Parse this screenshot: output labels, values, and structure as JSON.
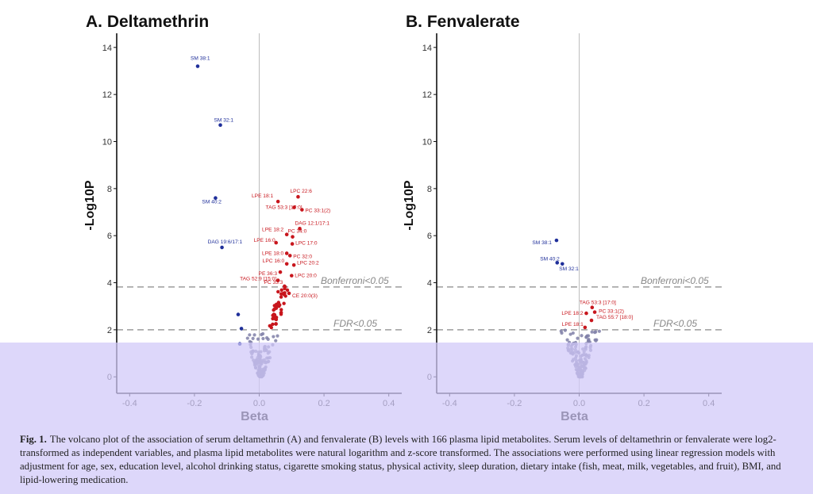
{
  "chart_data": [
    {
      "type": "scatter",
      "title": "A. Deltamethrin",
      "xlabel": "Beta",
      "ylabel": "-Log10P",
      "xlim": [
        -0.44,
        0.44
      ],
      "ylim": [
        -0.7,
        14.6
      ],
      "xticks": [
        "-0.4",
        "-0.2",
        "0.0",
        "0.2",
        "0.4"
      ],
      "yticks": [
        "0",
        "2",
        "4",
        "6",
        "8",
        "10",
        "12",
        "14"
      ],
      "grid": false,
      "legend": "none",
      "colors": {
        "negative": "#1f2f9a",
        "positive": "#c8161d",
        "nonsignificant": "#8080a8",
        "threshold": "#aaaaaa"
      },
      "thresholds": [
        {
          "label": "Bonferroni<0.05",
          "y": 3.82
        },
        {
          "label": "FDR<0.05",
          "y": 2.0
        }
      ],
      "points": [
        {
          "label": "SM 38:1",
          "x": -0.19,
          "y": 13.2,
          "group": "negative"
        },
        {
          "label": "SM 32:1",
          "x": -0.12,
          "y": 10.7,
          "group": "negative"
        },
        {
          "label": "SM 40:2",
          "x": -0.135,
          "y": 7.6,
          "group": "negative"
        },
        {
          "label": "DAG 19:6/17:1",
          "x": -0.115,
          "y": 5.5,
          "group": "negative"
        },
        {
          "label": "",
          "x": -0.065,
          "y": 2.65,
          "group": "negative"
        },
        {
          "label": "",
          "x": -0.055,
          "y": 2.05,
          "group": "negative"
        },
        {
          "label": "",
          "x": -0.06,
          "y": 1.4,
          "group": "negative"
        },
        {
          "label": "LPE 18:1",
          "x": 0.058,
          "y": 7.45,
          "group": "positive"
        },
        {
          "label": "LPC 22:6",
          "x": 0.12,
          "y": 7.65,
          "group": "positive"
        },
        {
          "label": "TAG 53:3 [17:0]",
          "x": 0.108,
          "y": 7.2,
          "group": "positive"
        },
        {
          "label": "PC 33:1(2)",
          "x": 0.132,
          "y": 7.1,
          "group": "positive"
        },
        {
          "label": "DAG 12:1/17:1",
          "x": 0.125,
          "y": 6.3,
          "group": "positive"
        },
        {
          "label": "LPE 18:2",
          "x": 0.085,
          "y": 6.05,
          "group": "positive"
        },
        {
          "label": "PC 34:0",
          "x": 0.103,
          "y": 5.95,
          "group": "positive"
        },
        {
          "label": "LPE 16:0",
          "x": 0.052,
          "y": 5.7,
          "group": "positive"
        },
        {
          "label": "LPC 17:0",
          "x": 0.102,
          "y": 5.65,
          "group": "positive"
        },
        {
          "label": "LPE 18:0",
          "x": 0.085,
          "y": 5.25,
          "group": "positive"
        },
        {
          "label": "PC 32:0",
          "x": 0.095,
          "y": 5.15,
          "group": "positive"
        },
        {
          "label": "LPC 16:0",
          "x": 0.085,
          "y": 4.8,
          "group": "positive"
        },
        {
          "label": "LPC 20:2",
          "x": 0.107,
          "y": 4.75,
          "group": "positive"
        },
        {
          "label": "PE 36:3",
          "x": 0.065,
          "y": 4.45,
          "group": "positive"
        },
        {
          "label": "LPC 20:0",
          "x": 0.1,
          "y": 4.3,
          "group": "positive"
        },
        {
          "label": "TAG 52:9 [15:0]",
          "x": 0.058,
          "y": 4.1,
          "group": "positive"
        },
        {
          "label": "PC 33:3",
          "x": 0.078,
          "y": 3.85,
          "group": "positive"
        },
        {
          "label": "CE 20:0(3)",
          "x": 0.092,
          "y": 3.55,
          "group": "positive"
        }
      ]
    },
    {
      "type": "scatter",
      "title": "B. Fenvalerate",
      "xlabel": "Beta",
      "ylabel": "-Log10P",
      "xlim": [
        -0.44,
        0.44
      ],
      "ylim": [
        -0.7,
        14.6
      ],
      "xticks": [
        "-0.4",
        "-0.2",
        "0.0",
        "0.2",
        "0.4"
      ],
      "yticks": [
        "0",
        "2",
        "4",
        "6",
        "8",
        "10",
        "12",
        "14"
      ],
      "grid": false,
      "legend": "none",
      "colors": {
        "negative": "#1f2f9a",
        "positive": "#c8161d",
        "nonsignificant": "#8080a8",
        "threshold": "#aaaaaa"
      },
      "thresholds": [
        {
          "label": "Bonferroni<0.05",
          "y": 3.82
        },
        {
          "label": "FDR<0.05",
          "y": 2.0
        }
      ],
      "points": [
        {
          "label": "SM 38:1",
          "x": -0.07,
          "y": 5.8,
          "group": "negative"
        },
        {
          "label": "SM 40:2",
          "x": -0.068,
          "y": 4.85,
          "group": "negative"
        },
        {
          "label": "SM 32:1",
          "x": -0.052,
          "y": 4.8,
          "group": "negative"
        },
        {
          "label": "TAG 53:3 [17:0]",
          "x": 0.04,
          "y": 2.95,
          "group": "positive"
        },
        {
          "label": "LPE 18:2",
          "x": 0.022,
          "y": 2.7,
          "group": "positive"
        },
        {
          "label": "PC 33:1(2)",
          "x": 0.048,
          "y": 2.75,
          "group": "positive"
        },
        {
          "label": "LPE 18:1",
          "x": 0.018,
          "y": 2.1,
          "group": "positive"
        },
        {
          "label": "TAG 55:7 [18:0]",
          "x": 0.038,
          "y": 2.4,
          "group": "positive"
        }
      ]
    }
  ],
  "caption": {
    "label": "Fig. 1.",
    "text": "The volcano plot of the association of serum deltamethrin (A) and fenvalerate (B) levels with 166 plasma lipid metabolites. Serum levels of deltamethrin or fenvalerate were log2-transformed as independent variables, and plasma lipid metabolites were natural logarithm and z-score transformed. The associations were performed using linear regression models with adjustment for age, sex, education level, alcohol drinking status, cigarette smoking status, physical activity, sleep duration, dietary intake (fish, meat, milk, vegetables, and fruit), BMI, and lipid-lowering medication."
  }
}
